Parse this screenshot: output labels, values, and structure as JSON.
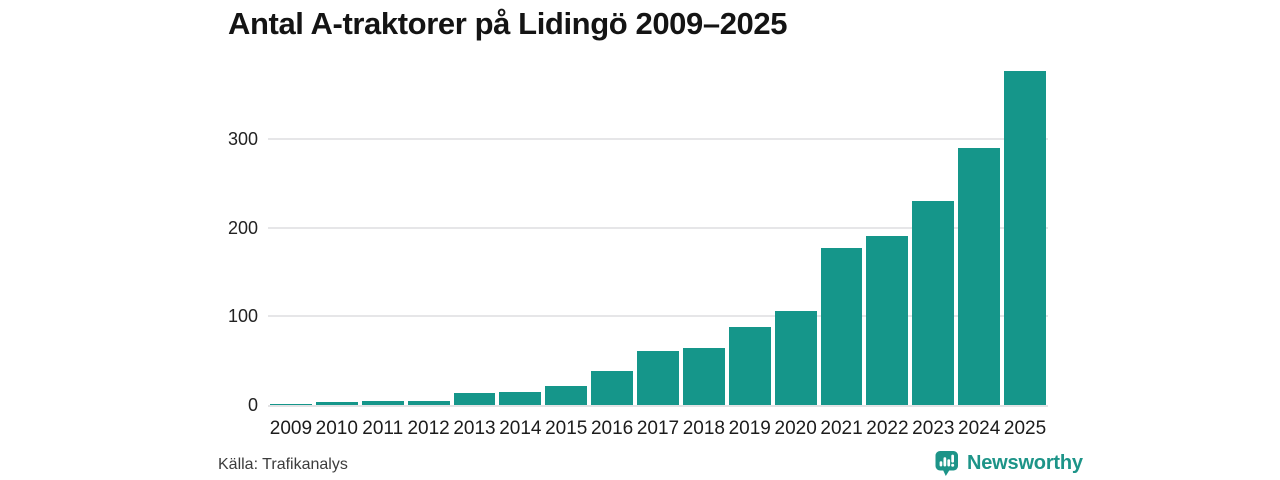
{
  "header": {
    "title": "Antal A-traktorer på Lidingö 2009–2025"
  },
  "chart_data": {
    "type": "bar",
    "title": "Antal A-traktorer på Lidingö 2009–2025",
    "categories": [
      "2009",
      "2010",
      "2011",
      "2012",
      "2013",
      "2014",
      "2015",
      "2016",
      "2017",
      "2018",
      "2019",
      "2020",
      "2021",
      "2022",
      "2023",
      "2024",
      "2025"
    ],
    "values": [
      1,
      3,
      4,
      4,
      13,
      15,
      22,
      38,
      61,
      64,
      88,
      106,
      177,
      191,
      230,
      290,
      377
    ],
    "xlabel": "",
    "ylabel": "",
    "ylim": [
      0,
      389
    ],
    "yticks": [
      0,
      100,
      200,
      300
    ],
    "grid": true,
    "legend": false,
    "bar_color": "#15968a"
  },
  "footer": {
    "source": "Källa: Trafikanalys",
    "brand": "Newsworthy"
  },
  "colors": {
    "bar": "#15968a",
    "gridline": "#e6e6e8",
    "title_text": "#141414",
    "axis_text": "#222222",
    "brand_teal": "#1d9488",
    "background": "#ffffff"
  }
}
